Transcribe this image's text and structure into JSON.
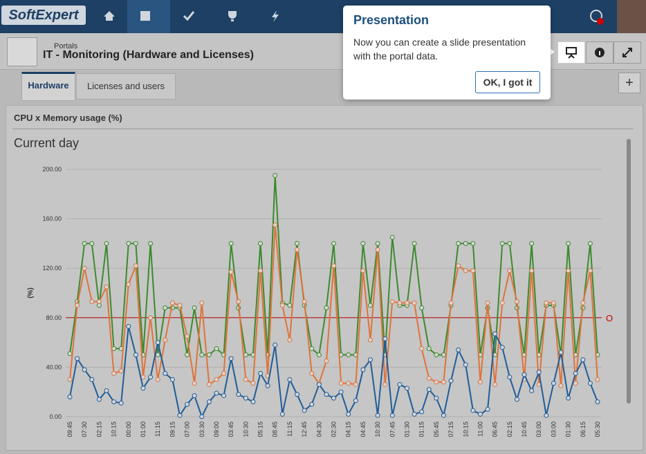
{
  "header": {
    "logo": "SoftExpert",
    "breadcrumb": "Portals",
    "title": "IT - Monitoring (Hardware and Licenses)"
  },
  "tabs": [
    "Hardware",
    "Licenses and users"
  ],
  "add_button": "+",
  "card": {
    "title": "CPU x Memory usage (%)"
  },
  "popup": {
    "title": "Presentation",
    "text": "Now you can create a slide presentation with the portal data.",
    "button": "OK, I got it"
  },
  "chart_data": {
    "type": "line",
    "title": "Current day",
    "y_label": "(%)",
    "threshold": {
      "value": 80,
      "label": "O",
      "color": "#c00000"
    },
    "categories": [
      "09:45",
      null,
      "07:30",
      null,
      "02:15",
      null,
      "10:15",
      null,
      "00:00",
      null,
      "01:00",
      null,
      "11:15",
      null,
      "09:15",
      null,
      "07:00",
      null,
      "03:30",
      null,
      "09:00",
      null,
      "03:45",
      null,
      "10:30",
      null,
      "05:15",
      null,
      "08:45",
      null,
      "11:15",
      null,
      "12:45",
      null,
      "04:30",
      null,
      "02:30",
      null,
      "04:15",
      null,
      "04:45",
      null,
      "10:30",
      null,
      "07:45",
      null,
      "01:30",
      null,
      "01:15",
      null,
      "05:45",
      null,
      "07:15",
      null,
      "10:15",
      null,
      "11:00",
      null,
      "06:45",
      null,
      "02:15",
      null,
      "10:45",
      null,
      "03:00",
      null,
      "03:00",
      null,
      "01:30",
      null,
      "06:15",
      null,
      "05:30"
    ],
    "series": [
      {
        "color": "#3c8a2e",
        "values": [
          51,
          93,
          140,
          140,
          90,
          140,
          55,
          55,
          140,
          140,
          50,
          140,
          50,
          88,
          88,
          88,
          50,
          88,
          50,
          50,
          55,
          50,
          140,
          88,
          50,
          50,
          140,
          50,
          195,
          92,
          90,
          140,
          90,
          55,
          50,
          88,
          140,
          50,
          50,
          50,
          140,
          90,
          140,
          50,
          145,
          90,
          90,
          140,
          88,
          55,
          50,
          50,
          90,
          140,
          140,
          140,
          50,
          88,
          50,
          140,
          140,
          88,
          50,
          140,
          50,
          90,
          90,
          50,
          140,
          50,
          88,
          140,
          50
        ]
      },
      {
        "color": "#e0733a",
        "values": [
          30,
          90,
          120,
          93,
          93,
          105,
          35,
          37,
          107,
          122,
          32,
          80,
          30,
          62,
          92,
          90,
          65,
          27,
          92,
          26,
          30,
          35,
          117,
          93,
          30,
          27,
          118,
          33,
          155,
          90,
          62,
          135,
          93,
          35,
          27,
          45,
          122,
          27,
          27,
          26,
          118,
          62,
          135,
          26,
          93,
          92,
          92,
          92,
          55,
          31,
          28,
          28,
          92,
          122,
          118,
          118,
          28,
          92,
          26,
          92,
          118,
          93,
          30,
          118,
          26,
          92,
          92,
          25,
          118,
          27,
          92,
          118,
          30
        ]
      },
      {
        "color": "#1f5c99",
        "values": [
          16,
          47,
          38,
          30,
          14,
          21,
          12,
          11,
          73,
          50,
          23,
          32,
          60,
          35,
          30,
          1,
          10,
          17,
          0,
          12,
          19,
          17,
          47,
          18,
          15,
          12,
          35,
          25,
          58,
          2,
          30,
          18,
          5,
          10,
          26,
          18,
          15,
          20,
          2,
          13,
          38,
          46,
          1,
          63,
          1,
          26,
          23,
          2,
          4,
          22,
          15,
          1,
          29,
          54,
          42,
          5,
          2,
          6,
          67,
          56,
          32,
          14,
          34,
          21,
          36,
          1,
          27,
          52,
          15,
          35,
          46,
          27,
          12
        ]
      }
    ],
    "ylim": [
      0,
      200
    ],
    "yticks": [
      {
        "value": 0,
        "label": "0.00"
      },
      {
        "value": 40,
        "label": "40.00"
      },
      {
        "value": 80,
        "label": "80.00"
      },
      {
        "value": 120,
        "label": "120.00"
      },
      {
        "value": 160,
        "label": "160.00"
      },
      {
        "value": 200,
        "label": "200.00"
      }
    ],
    "grid": true
  }
}
